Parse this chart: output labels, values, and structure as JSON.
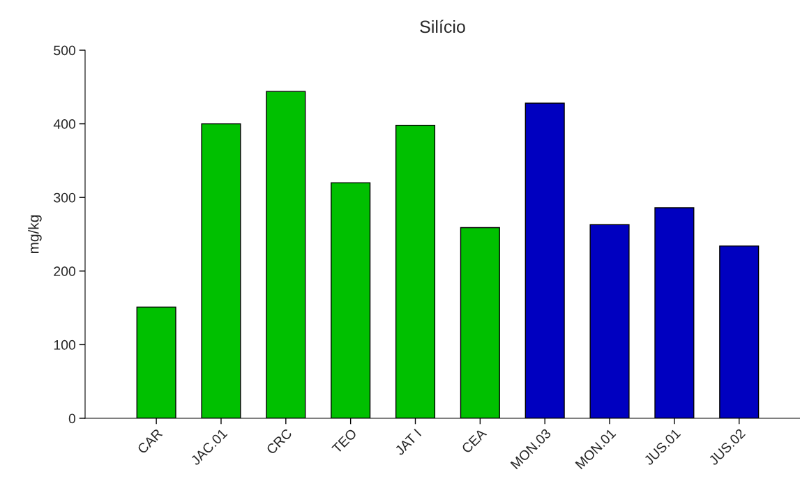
{
  "chart_data": {
    "type": "bar",
    "title": "Silício",
    "ylabel": "mg/kg",
    "categories": [
      "CAR",
      "JAC.01",
      "CRC",
      "TEO",
      "JAT I",
      "CEA",
      "MON.03",
      "MON.01",
      "JUS.01",
      "JUS.02"
    ],
    "values": [
      151,
      400,
      444,
      320,
      398,
      259,
      428,
      263,
      286,
      234
    ],
    "colors": [
      "#00c000",
      "#00c000",
      "#00c000",
      "#00c000",
      "#00c000",
      "#00c000",
      "#0000c0",
      "#0000c0",
      "#0000c0",
      "#0000c0"
    ],
    "ylim": [
      0,
      500
    ],
    "yticks": [
      0,
      100,
      200,
      300,
      400,
      500
    ],
    "grid": false,
    "legend": false
  }
}
